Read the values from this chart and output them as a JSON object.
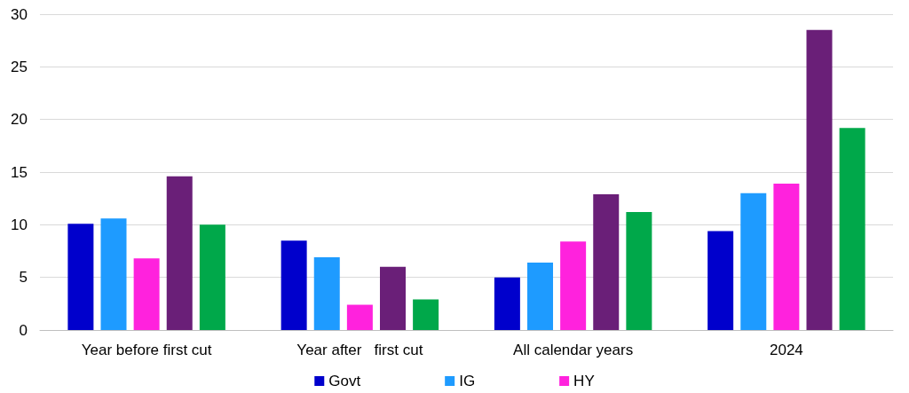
{
  "chart_data": {
    "type": "bar",
    "categories": [
      "Year before first cut",
      "Year after   first cut",
      "All calendar years",
      "2024"
    ],
    "series": [
      {
        "name": "Govt",
        "color": "#0000cc",
        "values": [
          10.1,
          8.5,
          5.0,
          9.4
        ]
      },
      {
        "name": "IG",
        "color": "#1e9bff",
        "values": [
          10.6,
          6.9,
          6.4,
          13.0
        ]
      },
      {
        "name": "HY",
        "color": "#ff22dd",
        "values": [
          6.8,
          2.4,
          8.4,
          13.9
        ]
      },
      {
        "color": "#6a1f78",
        "values": [
          14.6,
          6.0,
          12.9,
          28.5
        ]
      },
      {
        "color": "#00a84a",
        "values": [
          10.0,
          2.9,
          11.2,
          19.2
        ]
      }
    ],
    "ylim": [
      0,
      30
    ],
    "yticks": [
      0,
      5,
      10,
      15,
      20,
      25,
      30
    ],
    "grid": "y",
    "legend": "bottom"
  }
}
